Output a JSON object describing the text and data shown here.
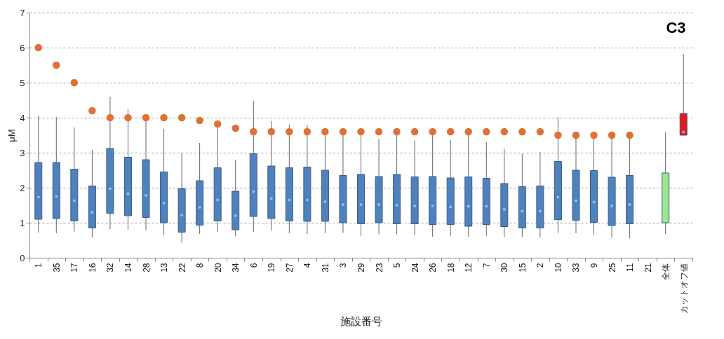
{
  "chart_data": {
    "type": "box",
    "title": "C3",
    "xlabel": "施設番号",
    "ylabel": "μM",
    "categories": [
      "1",
      "35",
      "17",
      "16",
      "32",
      "14",
      "28",
      "13",
      "22",
      "8",
      "20",
      "34",
      "6",
      "19",
      "27",
      "4",
      "31",
      "3",
      "29",
      "23",
      "5",
      "24",
      "26",
      "18",
      "12",
      "7",
      "30",
      "15",
      "2",
      "10",
      "33",
      "9",
      "25",
      "11",
      "21",
      "全体",
      "カットオフ値"
    ],
    "ylim": [
      0,
      7
    ],
    "yticks": [
      0,
      1,
      2,
      3,
      4,
      5,
      6,
      7
    ],
    "grid": "y",
    "series": [
      {
        "type": "box",
        "colors": [
          "#4f81bd",
          "#4f81bd",
          "#4f81bd",
          "#4f81bd",
          "#4f81bd",
          "#4f81bd",
          "#4f81bd",
          "#4f81bd",
          "#4f81bd",
          "#4f81bd",
          "#4f81bd",
          "#4f81bd",
          "#4f81bd",
          "#4f81bd",
          "#4f81bd",
          "#4f81bd",
          "#4f81bd",
          "#4f81bd",
          "#4f81bd",
          "#4f81bd",
          "#4f81bd",
          "#4f81bd",
          "#4f81bd",
          "#4f81bd",
          "#4f81bd",
          "#4f81bd",
          "#4f81bd",
          "#4f81bd",
          "#4f81bd",
          "#4f81bd",
          "#4f81bd",
          "#4f81bd",
          "#4f81bd",
          "#4f81bd",
          null,
          "#9ce68c",
          "#e41a1a"
        ],
        "boxes": [
          {
            "low": 0.72,
            "q1": 1.1,
            "median": 1.73,
            "q3": 2.72,
            "high": 4.05
          },
          {
            "low": 0.7,
            "q1": 1.12,
            "median": 1.75,
            "q3": 2.72,
            "high": 4.02
          },
          {
            "low": 0.75,
            "q1": 1.05,
            "median": 1.63,
            "q3": 2.53,
            "high": 3.72
          },
          {
            "low": 0.58,
            "q1": 0.85,
            "median": 1.3,
            "q3": 2.05,
            "high": 3.08
          },
          {
            "low": 0.82,
            "q1": 1.27,
            "median": 1.97,
            "q3": 3.12,
            "high": 4.6
          },
          {
            "low": 0.8,
            "q1": 1.2,
            "median": 1.83,
            "q3": 2.87,
            "high": 4.25
          },
          {
            "low": 0.78,
            "q1": 1.15,
            "median": 1.78,
            "q3": 2.8,
            "high": 3.95
          },
          {
            "low": 0.65,
            "q1": 1.0,
            "median": 1.56,
            "q3": 2.45,
            "high": 3.68
          },
          {
            "low": 0.43,
            "q1": 0.73,
            "median": 1.22,
            "q3": 1.97,
            "high": 2.98
          },
          {
            "low": 0.68,
            "q1": 0.93,
            "median": 1.44,
            "q3": 2.2,
            "high": 3.28
          },
          {
            "low": 0.73,
            "q1": 1.05,
            "median": 1.65,
            "q3": 2.57,
            "high": 3.8
          },
          {
            "low": 0.62,
            "q1": 0.8,
            "median": 1.2,
            "q3": 1.9,
            "high": 2.8
          },
          {
            "low": 0.73,
            "q1": 1.18,
            "median": 1.89,
            "q3": 2.97,
            "high": 4.48
          },
          {
            "low": 0.78,
            "q1": 1.12,
            "median": 1.69,
            "q3": 2.62,
            "high": 3.9
          },
          {
            "low": 0.7,
            "q1": 1.05,
            "median": 1.65,
            "q3": 2.57,
            "high": 3.8
          },
          {
            "low": 0.68,
            "q1": 1.04,
            "median": 1.65,
            "q3": 2.59,
            "high": 3.8
          },
          {
            "low": 0.7,
            "q1": 1.04,
            "median": 1.6,
            "q3": 2.5,
            "high": 3.6
          },
          {
            "low": 0.71,
            "q1": 1.0,
            "median": 1.52,
            "q3": 2.35,
            "high": 3.6
          },
          {
            "low": 0.63,
            "q1": 0.97,
            "median": 1.52,
            "q3": 2.38,
            "high": 3.6
          },
          {
            "low": 0.67,
            "q1": 1.0,
            "median": 1.52,
            "q3": 2.32,
            "high": 3.4
          },
          {
            "low": 0.67,
            "q1": 0.97,
            "median": 1.5,
            "q3": 2.38,
            "high": 3.6
          },
          {
            "low": 0.65,
            "q1": 0.97,
            "median": 1.48,
            "q3": 2.31,
            "high": 3.35
          },
          {
            "low": 0.6,
            "q1": 0.95,
            "median": 1.48,
            "q3": 2.32,
            "high": 3.6
          },
          {
            "low": 0.63,
            "q1": 0.95,
            "median": 1.45,
            "q3": 2.28,
            "high": 3.37
          },
          {
            "low": 0.6,
            "q1": 0.9,
            "median": 1.47,
            "q3": 2.31,
            "high": 3.6
          },
          {
            "low": 0.62,
            "q1": 0.95,
            "median": 1.47,
            "q3": 2.27,
            "high": 3.31
          },
          {
            "low": 0.6,
            "q1": 0.89,
            "median": 1.38,
            "q3": 2.12,
            "high": 3.11
          },
          {
            "low": 0.6,
            "q1": 0.85,
            "median": 1.33,
            "q3": 2.03,
            "high": 2.97
          },
          {
            "low": 0.58,
            "q1": 0.85,
            "median": 1.33,
            "q3": 2.05,
            "high": 3.02
          },
          {
            "low": 0.7,
            "q1": 1.09,
            "median": 1.73,
            "q3": 2.75,
            "high": 4.01
          },
          {
            "low": 0.7,
            "q1": 1.07,
            "median": 1.63,
            "q3": 2.5,
            "high": 3.6
          },
          {
            "low": 0.65,
            "q1": 1.01,
            "median": 1.59,
            "q3": 2.49,
            "high": 3.5
          },
          {
            "low": 0.58,
            "q1": 0.92,
            "median": 1.48,
            "q3": 2.3,
            "high": 3.5
          },
          {
            "low": 0.55,
            "q1": 0.97,
            "median": 1.52,
            "q3": 2.35,
            "high": 3.5
          },
          null,
          {
            "low": 0.68,
            "q1": 1.0,
            "median": 1.57,
            "q3": 2.42,
            "high": 3.59
          },
          {
            "low": 3.5,
            "q1": 3.5,
            "median": 3.59,
            "q3": 4.12,
            "high": 5.81
          }
        ]
      },
      {
        "type": "scatter",
        "color": "#e07034",
        "marker": "circle",
        "x": [
          "1",
          "35",
          "17",
          "16",
          "32",
          "14",
          "28",
          "13",
          "22",
          "8",
          "20",
          "34",
          "6",
          "19",
          "27",
          "4",
          "31",
          "3",
          "29",
          "23",
          "5",
          "24",
          "26",
          "18",
          "12",
          "7",
          "30",
          "15",
          "2",
          "10",
          "33",
          "9",
          "25",
          "11"
        ],
        "values": [
          6.0,
          5.5,
          5.0,
          4.2,
          4.0,
          4.0,
          4.0,
          4.0,
          4.0,
          3.92,
          3.82,
          3.7,
          3.6,
          3.6,
          3.6,
          3.6,
          3.6,
          3.6,
          3.6,
          3.6,
          3.6,
          3.6,
          3.6,
          3.6,
          3.6,
          3.6,
          3.6,
          3.6,
          3.6,
          3.5,
          3.5,
          3.5,
          3.5,
          3.5
        ]
      }
    ]
  }
}
